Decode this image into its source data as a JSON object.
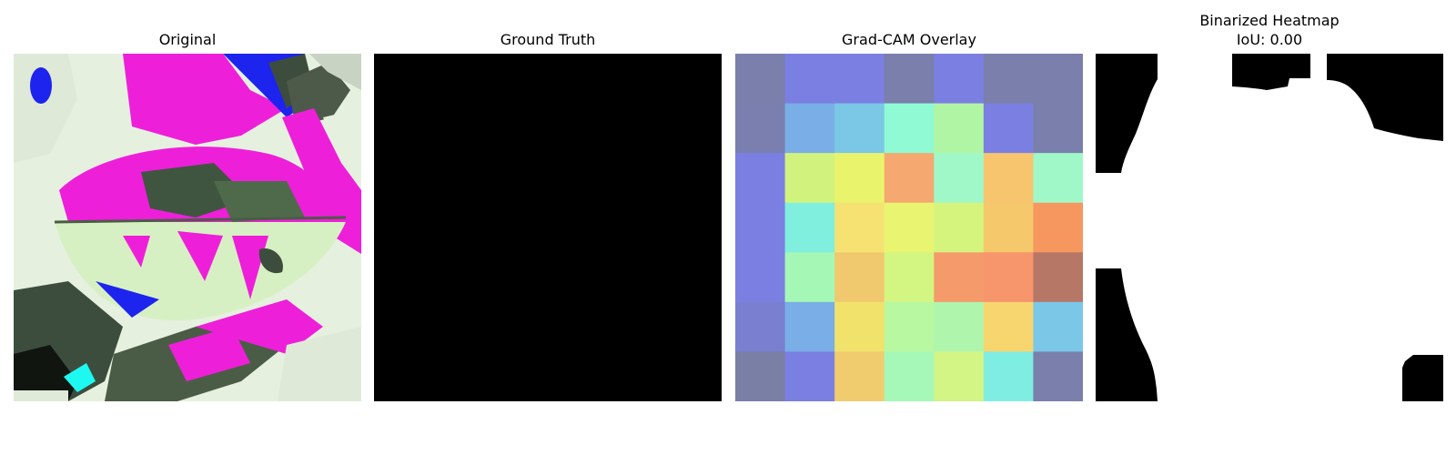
{
  "figure": {
    "panels": [
      {
        "title": "Original"
      },
      {
        "title": "Ground Truth"
      },
      {
        "title": "Grad-CAM Overlay"
      },
      {
        "title": "Binarized Heatmap",
        "subtitle": "IoU: 0.00"
      }
    ]
  },
  "chart_data": [
    {
      "type": "image",
      "title": "Original",
      "description": "color-distorted leaf photograph with magenta, blue and pale green regions"
    },
    {
      "type": "heatmap",
      "title": "Ground Truth",
      "mask": "all zeros",
      "fill_color": "#000000"
    },
    {
      "type": "heatmap",
      "title": "Grad-CAM Overlay",
      "grid_size": [
        7,
        7
      ],
      "values": [
        [
          0.05,
          0.15,
          0.15,
          0.05,
          0.15,
          0.05,
          0.05
        ],
        [
          0.05,
          0.3,
          0.35,
          0.45,
          0.55,
          0.15,
          0.05
        ],
        [
          0.15,
          0.6,
          0.65,
          0.85,
          0.5,
          0.75,
          0.45
        ],
        [
          0.15,
          0.45,
          0.7,
          0.65,
          0.6,
          0.75,
          0.85
        ],
        [
          0.15,
          0.5,
          0.75,
          0.6,
          0.85,
          0.88,
          0.95
        ],
        [
          0.1,
          0.3,
          0.7,
          0.55,
          0.55,
          0.7,
          0.35
        ],
        [
          0.05,
          0.15,
          0.75,
          0.5,
          0.6,
          0.4,
          0.05
        ]
      ],
      "colors": [
        [
          "#7a7fab",
          "#7b7fe2",
          "#7b7fe2",
          "#7a7fab",
          "#7b7fe2",
          "#7a7fab",
          "#7a7fab"
        ],
        [
          "#7a7fb0",
          "#7aaee6",
          "#7ac7e6",
          "#8ffad4",
          "#b0f5a4",
          "#7b7fe2",
          "#7a7fab"
        ],
        [
          "#7b7fe2",
          "#d2f27e",
          "#e9f46c",
          "#f5a870",
          "#a0f8c8",
          "#f7c56e",
          "#a0f8c8"
        ],
        [
          "#7b7fe2",
          "#80efde",
          "#f5e272",
          "#e9f471",
          "#d5f47d",
          "#f5c86c",
          "#f79760"
        ],
        [
          "#7b7fe2",
          "#a5f7b6",
          "#f0c96e",
          "#d3f582",
          "#f59a6a",
          "#f7956c",
          "#b77767"
        ],
        [
          "#7a7fd0",
          "#7aaee6",
          "#f1e26c",
          "#b8f8a0",
          "#b0f5ac",
          "#f7d670",
          "#7ac7e8"
        ],
        [
          "#7a7fa6",
          "#7b7fe2",
          "#f0cc6e",
          "#a5f8b8",
          "#d2f585",
          "#80ede2",
          "#7a7fab"
        ]
      ]
    },
    {
      "type": "heatmap",
      "title": "Binarized Heatmap",
      "subtitle": "IoU: 0.00",
      "foreground_color": "#ffffff",
      "background_color": "#000000"
    }
  ]
}
